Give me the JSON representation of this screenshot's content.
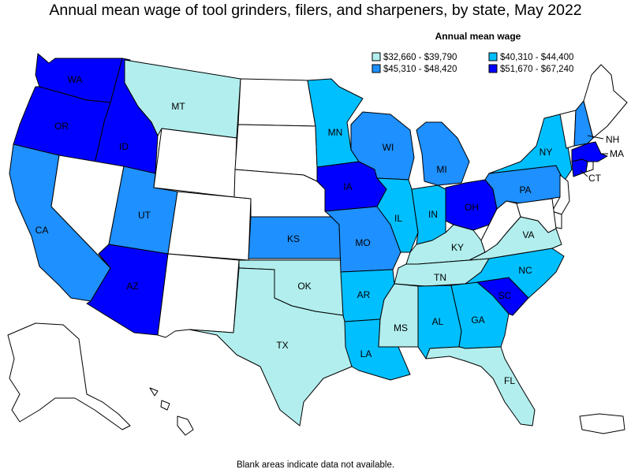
{
  "title": "Annual mean wage of tool grinders, filers, and sharpeners, by state, May 2022",
  "legend": {
    "title": "Annual mean wage",
    "items": [
      {
        "id": "c1",
        "label": "$32,660 - $39,790",
        "color": "#b2eeee"
      },
      {
        "id": "c2",
        "label": "$40,310 - $44,400",
        "color": "#00bfff"
      },
      {
        "id": "c3",
        "label": "$45,310 - $48,420",
        "color": "#1e90ff"
      },
      {
        "id": "c4",
        "label": "$51,670 - $67,240",
        "color": "#0000ff"
      }
    ]
  },
  "no_data_color": "#ffffff",
  "states": [
    {
      "abbr": "WA",
      "class": "c4"
    },
    {
      "abbr": "OR",
      "class": "c4"
    },
    {
      "abbr": "ID",
      "class": "c4"
    },
    {
      "abbr": "CA",
      "class": "c3"
    },
    {
      "abbr": "NV",
      "class": null
    },
    {
      "abbr": "UT",
      "class": "c3"
    },
    {
      "abbr": "AZ",
      "class": "c4"
    },
    {
      "abbr": "MT",
      "class": "c1"
    },
    {
      "abbr": "WY",
      "class": null
    },
    {
      "abbr": "CO",
      "class": null
    },
    {
      "abbr": "NM",
      "class": null
    },
    {
      "abbr": "ND",
      "class": null
    },
    {
      "abbr": "SD",
      "class": null
    },
    {
      "abbr": "NE",
      "class": null
    },
    {
      "abbr": "KS",
      "class": "c3"
    },
    {
      "abbr": "OK",
      "class": "c1"
    },
    {
      "abbr": "TX",
      "class": "c1"
    },
    {
      "abbr": "MN",
      "class": "c2"
    },
    {
      "abbr": "IA",
      "class": "c4"
    },
    {
      "abbr": "MO",
      "class": "c3"
    },
    {
      "abbr": "AR",
      "class": "c2"
    },
    {
      "abbr": "LA",
      "class": "c2"
    },
    {
      "abbr": "WI",
      "class": "c3"
    },
    {
      "abbr": "IL",
      "class": "c2"
    },
    {
      "abbr": "MI",
      "class": "c3"
    },
    {
      "abbr": "IN",
      "class": "c2"
    },
    {
      "abbr": "OH",
      "class": "c4"
    },
    {
      "abbr": "KY",
      "class": "c1"
    },
    {
      "abbr": "TN",
      "class": "c1"
    },
    {
      "abbr": "MS",
      "class": "c1"
    },
    {
      "abbr": "AL",
      "class": "c2"
    },
    {
      "abbr": "GA",
      "class": "c2"
    },
    {
      "abbr": "FL",
      "class": "c1"
    },
    {
      "abbr": "SC",
      "class": "c4"
    },
    {
      "abbr": "NC",
      "class": "c2"
    },
    {
      "abbr": "VA",
      "class": "c1"
    },
    {
      "abbr": "WV",
      "class": null
    },
    {
      "abbr": "PA",
      "class": "c3"
    },
    {
      "abbr": "NY",
      "class": "c2"
    },
    {
      "abbr": "VT",
      "class": null
    },
    {
      "abbr": "NH",
      "class": "c3"
    },
    {
      "abbr": "ME",
      "class": null
    },
    {
      "abbr": "MA",
      "class": "c4"
    },
    {
      "abbr": "CT",
      "class": "c4"
    },
    {
      "abbr": "RI",
      "class": null
    },
    {
      "abbr": "NJ",
      "class": null
    },
    {
      "abbr": "DE",
      "class": null
    },
    {
      "abbr": "MD",
      "class": null
    },
    {
      "abbr": "AK",
      "class": null
    },
    {
      "abbr": "HI",
      "class": null
    },
    {
      "abbr": "PR",
      "class": null
    }
  ],
  "footnote": "Blank areas indicate data not available."
}
